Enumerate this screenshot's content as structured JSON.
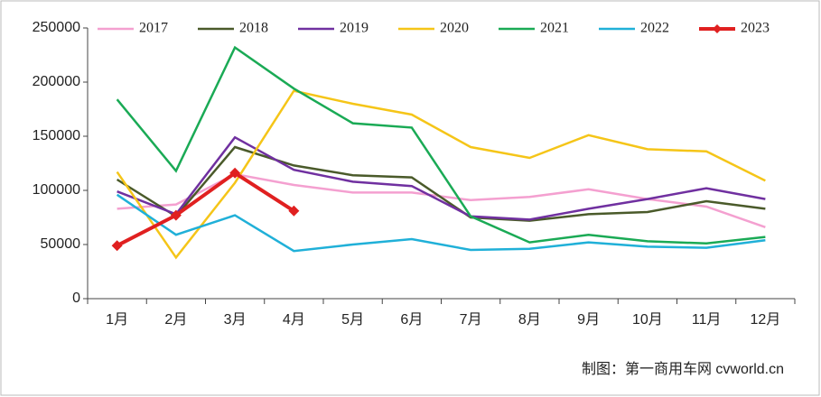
{
  "chart_data": {
    "type": "line",
    "categories": [
      "1月",
      "2月",
      "3月",
      "4月",
      "5月",
      "6月",
      "7月",
      "8月",
      "9月",
      "10月",
      "11月",
      "12月"
    ],
    "series": [
      {
        "name": "2017",
        "color": "#f4a0d0",
        "values": [
          83000,
          87000,
          115000,
          105000,
          98000,
          98000,
          91000,
          94000,
          101000,
          92000,
          85000,
          66000
        ]
      },
      {
        "name": "2018",
        "color": "#4a5a2a",
        "values": [
          110000,
          76000,
          140000,
          123000,
          114000,
          112000,
          75000,
          72000,
          78000,
          80000,
          90000,
          83000
        ]
      },
      {
        "name": "2019",
        "color": "#7030a0",
        "values": [
          99000,
          78000,
          149000,
          119000,
          108000,
          104000,
          76000,
          73000,
          83000,
          92000,
          102000,
          92000
        ]
      },
      {
        "name": "2020",
        "color": "#f5c518",
        "values": [
          117000,
          38000,
          107000,
          192000,
          180000,
          170000,
          140000,
          130000,
          151000,
          138000,
          136000,
          109000
        ]
      },
      {
        "name": "2021",
        "color": "#1aaa55",
        "values": [
          184000,
          118000,
          232000,
          194000,
          162000,
          158000,
          76000,
          52000,
          59000,
          53000,
          51000,
          57000
        ]
      },
      {
        "name": "2022",
        "color": "#20b0d8",
        "values": [
          96000,
          59000,
          77000,
          44000,
          50000,
          55000,
          45000,
          46000,
          52000,
          48000,
          47000,
          54000
        ]
      },
      {
        "name": "2023",
        "color": "#e02020",
        "marker": "diamond",
        "values": [
          49000,
          77000,
          116000,
          81000,
          null,
          null,
          null,
          null,
          null,
          null,
          null,
          null
        ]
      }
    ],
    "ylim": [
      0,
      250000
    ],
    "yticks": [
      0,
      50000,
      100000,
      150000,
      200000,
      250000
    ],
    "legend": "top",
    "annotation": "制图：第一商用车网 cvworld.cn"
  }
}
